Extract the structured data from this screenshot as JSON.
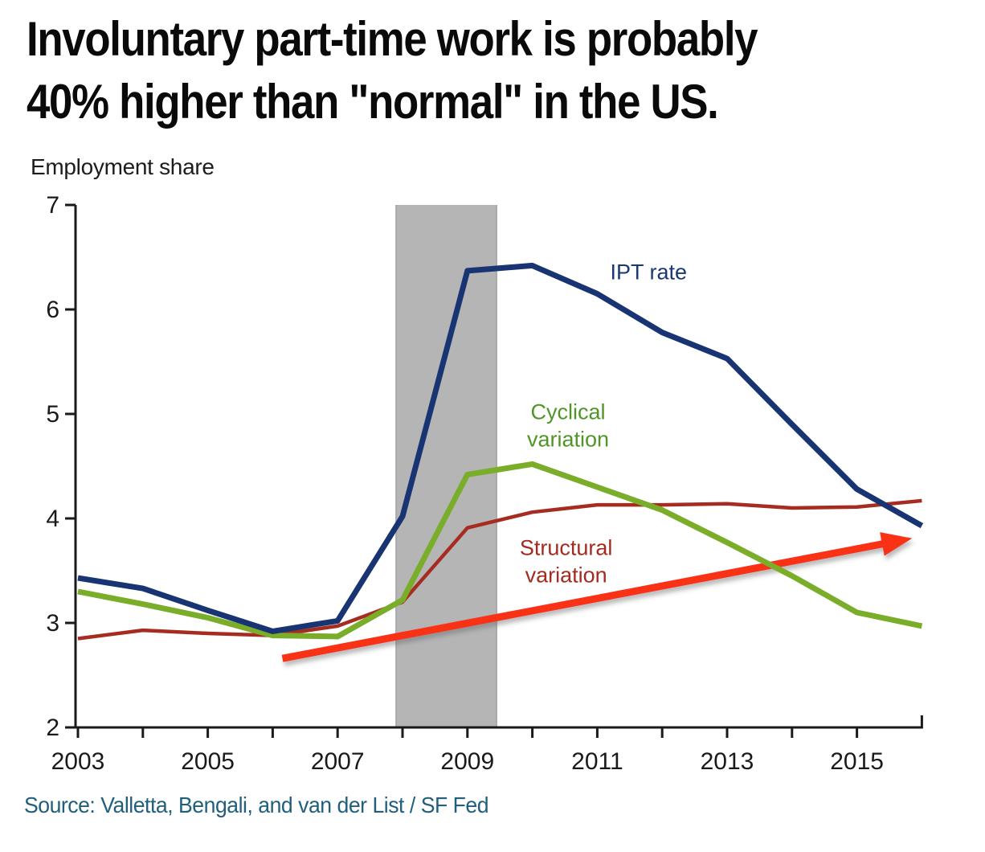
{
  "page": {
    "title_lines": [
      "Involuntary part-time work is probably",
      "40% higher than \"normal\" in the US."
    ],
    "source": "Source: Valletta, Bengali, and van der List / SF Fed"
  },
  "chart_data": {
    "type": "line",
    "title": "Involuntary part-time work is probably 40% higher than \"normal\" in the US.",
    "ylabel": "Employment share",
    "xlabel": "",
    "xlim": [
      2003,
      2016
    ],
    "ylim": [
      2,
      7
    ],
    "yticks": [
      2,
      3,
      4,
      5,
      6,
      7
    ],
    "xticks_minor": [
      2003,
      2004,
      2005,
      2006,
      2007,
      2008,
      2009,
      2010,
      2011,
      2012,
      2013,
      2014,
      2015
    ],
    "xticks_labeled": [
      2003,
      2005,
      2007,
      2009,
      2011,
      2013,
      2015
    ],
    "grid": false,
    "legend_position": "inline-annotations",
    "x": [
      2003,
      2004,
      2005,
      2006,
      2007,
      2008,
      2009,
      2010,
      2011,
      2012,
      2013,
      2014,
      2015,
      2016
    ],
    "series": [
      {
        "name": "IPT rate",
        "color": "#183472",
        "stroke_width": 7,
        "values": [
          3.43,
          3.33,
          3.12,
          2.92,
          3.02,
          4.02,
          6.37,
          6.42,
          6.15,
          5.78,
          5.53,
          4.9,
          4.28,
          3.93
        ]
      },
      {
        "name": "Cyclical variation",
        "color": "#7aad29",
        "stroke_width": 7,
        "values": [
          3.3,
          3.18,
          3.05,
          2.88,
          2.87,
          3.22,
          4.42,
          4.52,
          4.3,
          4.08,
          3.77,
          3.45,
          3.1,
          2.97
        ]
      },
      {
        "name": "Structural variation",
        "color": "#a62c21",
        "stroke_width": 4.5,
        "values": [
          2.85,
          2.93,
          2.9,
          2.88,
          2.97,
          3.2,
          3.91,
          4.06,
          4.13,
          4.13,
          4.14,
          4.1,
          4.11,
          4.17
        ]
      }
    ],
    "recession_band": {
      "from": 2007.9,
      "to": 2009.45,
      "color": "#b5b5b5"
    },
    "trend_arrow": {
      "from_xy": [
        2006.15,
        2.66
      ],
      "to_xy": [
        2015.85,
        3.81
      ],
      "color": "#f93016"
    },
    "annotations": [
      {
        "lines": [
          "IPT rate"
        ],
        "x": 2011.79,
        "y": 6.29,
        "color": "#1b3876"
      },
      {
        "lines": [
          "Cyclical",
          "variation"
        ],
        "x": 2010.55,
        "y": 4.95,
        "color": "#4f9627"
      },
      {
        "lines": [
          "Structural",
          "variation"
        ],
        "x": 2010.52,
        "y": 3.65,
        "color": "#a32b20"
      }
    ]
  }
}
